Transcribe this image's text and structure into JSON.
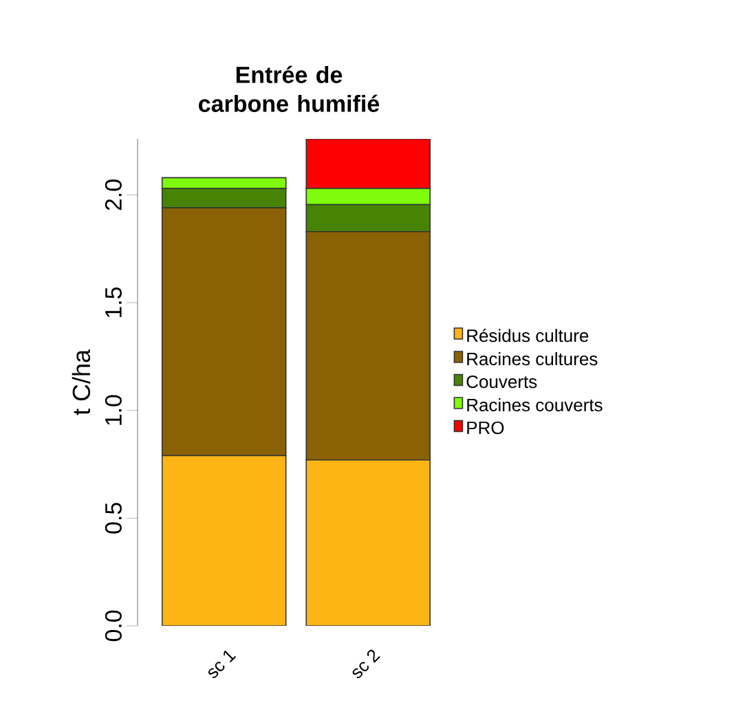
{
  "chart_data": {
    "type": "bar",
    "title": "Entrée de carbone humifié",
    "ylabel": "t C/ha",
    "categories": [
      "sc 1",
      "sc 2"
    ],
    "stacked": true,
    "series": [
      {
        "name": "Résidus culture",
        "color": "#fdb515",
        "values": [
          0.79,
          0.77
        ]
      },
      {
        "name": "Racines cultures",
        "color": "#8b6106",
        "values": [
          1.15,
          1.06
        ]
      },
      {
        "name": "Couverts",
        "color": "#478405",
        "values": [
          0.09,
          0.125
        ]
      },
      {
        "name": "Racines couverts",
        "color": "#7efc0b",
        "values": [
          0.05,
          0.075
        ]
      },
      {
        "name": "PRO",
        "color": "#fe0000",
        "values": [
          0,
          0.23
        ]
      }
    ],
    "ylim": [
      0,
      2.26
    ],
    "yticks": [
      {
        "value": 0,
        "label": "0.0"
      },
      0.5,
      {
        "value": 1,
        "label": "1.0"
      },
      1.5,
      {
        "value": 2,
        "label": "2.0"
      }
    ],
    "legend": "right",
    "grid": false
  }
}
